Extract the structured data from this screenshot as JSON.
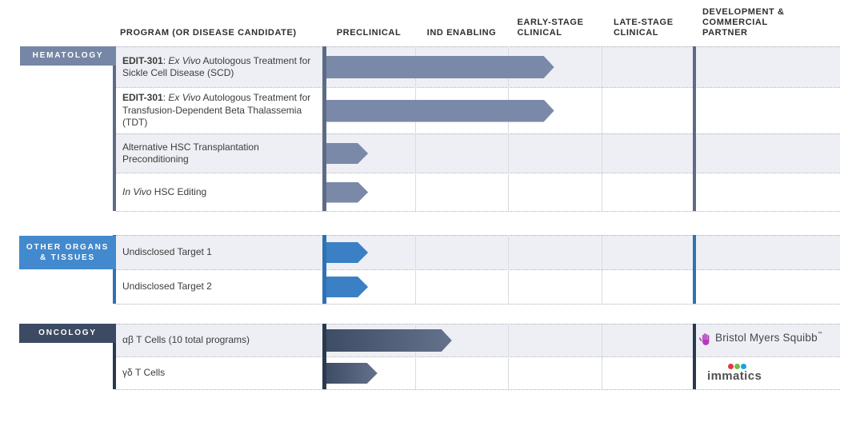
{
  "header": {
    "program": "PROGRAM (OR DISEASE CANDIDATE)",
    "preclinical": "PRECLINICAL",
    "ind_enabling": "IND ENABLING",
    "early_stage_clinical": "EARLY-STAGE CLINICAL",
    "late_stage_clinical": "LATE-STAGE CLINICAL",
    "dev_commercial_partner": "DEVELOPMENT & COMMERCIAL PARTNER"
  },
  "colors": {
    "hema": "#7586a6",
    "hema-spine": "#5d6b85",
    "hema-arrow": "#7b89a8",
    "other": "#4289cd",
    "other-spine": "#2f72b2",
    "other-arrow": "#3b80c5",
    "onc": "#3c4a63",
    "onc-spine": "#2b394f",
    "onc-arrow-a": "#3e4c66",
    "onc-arrow-b": "#64728c",
    "stripe": "#edeff4",
    "grid": "#d9dce2",
    "dotted": "#a8aeb6",
    "header-text": "#2e2e2e",
    "bms": "#b33abb",
    "logo-text": "#43464b",
    "immatics-dot-red": "#e2383f",
    "immatics-dot-green": "#6fbe4a",
    "immatics-dot-blue": "#19a6db"
  },
  "sections": [
    {
      "label": "HEMATOLOGY",
      "rows": [
        {
          "program_parts": [
            {
              "t": "EDIT-301",
              "s": "b"
            },
            {
              "t": ": ",
              "s": ""
            },
            {
              "t": "Ex Vivo",
              "s": "i"
            },
            {
              "t": " Autologous Treatment for Sickle Cell Disease (SCD)",
              "s": ""
            }
          ],
          "progress": 2.5
        },
        {
          "program_parts": [
            {
              "t": "EDIT-301",
              "s": "b"
            },
            {
              "t": ": ",
              "s": ""
            },
            {
              "t": "Ex Vivo",
              "s": "i"
            },
            {
              "t": " Autologous Treatment for Transfusion-Dependent Beta Thalassemia (TDT)",
              "s": ""
            }
          ],
          "progress": 2.5
        },
        {
          "program_parts": [
            {
              "t": "Alternative HSC Transplantation Preconditioning",
              "s": ""
            }
          ],
          "progress": 0.5
        },
        {
          "program_parts": [
            {
              "t": "In Vivo",
              "s": "i"
            },
            {
              "t": " HSC Editing",
              "s": ""
            }
          ],
          "progress": 0.5
        }
      ]
    },
    {
      "label": "OTHER ORGANS & TISSUES",
      "rows": [
        {
          "program_parts": [
            {
              "t": "Undisclosed Target 1",
              "s": ""
            }
          ],
          "progress": 0.5
        },
        {
          "program_parts": [
            {
              "t": "Undisclosed Target 2",
              "s": ""
            }
          ],
          "progress": 0.5
        }
      ]
    },
    {
      "label": "ONCOLOGY",
      "rows": [
        {
          "program_parts": [
            {
              "t": "αβ T Cells (10 total programs)",
              "s": ""
            }
          ],
          "progress": 1.4,
          "partner": "Bristol Myers Squibb"
        },
        {
          "program_parts": [
            {
              "t": "γδ T Cells",
              "s": ""
            }
          ],
          "progress": 0.6,
          "partner": "Immatics"
        }
      ]
    }
  ],
  "partners": {
    "bms": {
      "name": "Bristol Myers Squibb",
      "tm": "™"
    },
    "immatics": {
      "name": "immatics"
    }
  },
  "chart_data": {
    "type": "bar",
    "title": "Gene editing development pipeline by stage",
    "stages": [
      "PRECLINICAL",
      "IND ENABLING",
      "EARLY-STAGE CLINICAL",
      "LATE-STAGE CLINICAL"
    ],
    "unit": "stages completed (0-4, estimated from arrow length)",
    "xlim": [
      0,
      4
    ],
    "series": [
      {
        "category": "HEMATOLOGY",
        "name": "EDIT-301: Ex Vivo Autologous Treatment for Sickle Cell Disease (SCD)",
        "progress": 2.5,
        "partner": null
      },
      {
        "category": "HEMATOLOGY",
        "name": "EDIT-301: Ex Vivo Autologous Treatment for Transfusion-Dependent Beta Thalassemia (TDT)",
        "progress": 2.5,
        "partner": null
      },
      {
        "category": "HEMATOLOGY",
        "name": "Alternative HSC Transplantation Preconditioning",
        "progress": 0.5,
        "partner": null
      },
      {
        "category": "HEMATOLOGY",
        "name": "In Vivo HSC Editing",
        "progress": 0.5,
        "partner": null
      },
      {
        "category": "OTHER ORGANS & TISSUES",
        "name": "Undisclosed Target 1",
        "progress": 0.5,
        "partner": null
      },
      {
        "category": "OTHER ORGANS & TISSUES",
        "name": "Undisclosed Target 2",
        "progress": 0.5,
        "partner": null
      },
      {
        "category": "ONCOLOGY",
        "name": "αβ T Cells (10 total programs)",
        "progress": 1.4,
        "partner": "Bristol Myers Squibb"
      },
      {
        "category": "ONCOLOGY",
        "name": "γδ T Cells",
        "progress": 0.6,
        "partner": "Immatics"
      }
    ]
  }
}
